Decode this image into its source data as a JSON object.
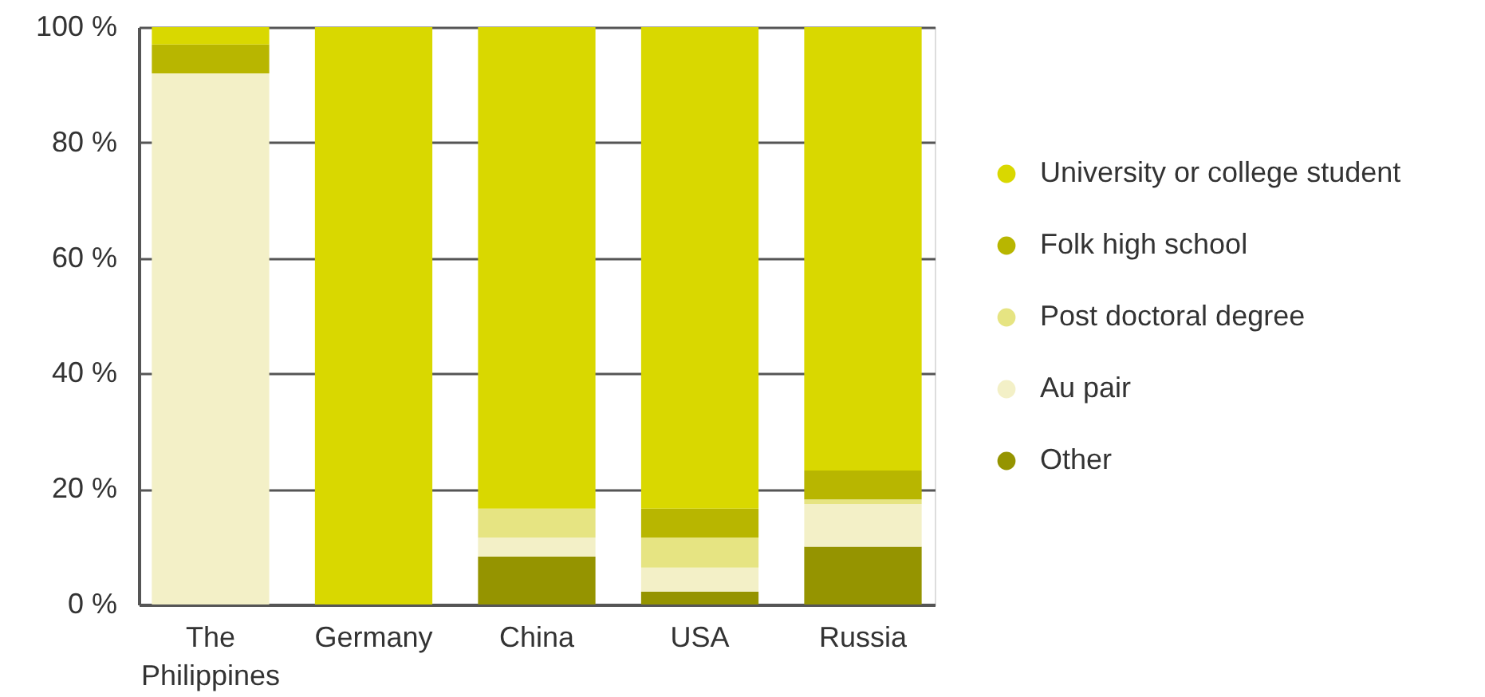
{
  "chart_data": {
    "type": "bar",
    "stacked": true,
    "categories": [
      "The Philippines",
      "Germany",
      "China",
      "USA",
      "Russia"
    ],
    "series": [
      {
        "name": "Other",
        "color": "#959400",
        "values": [
          0,
          0,
          8.3,
          2.2,
          10
        ]
      },
      {
        "name": "Au pair",
        "color": "#f3f0c7",
        "values": [
          92,
          0,
          3.3,
          4.2,
          7.4
        ]
      },
      {
        "name": "Post doctoral degree",
        "color": "#e6e482",
        "values": [
          0,
          0,
          5,
          5.2,
          0.8
        ]
      },
      {
        "name": "Folk high school",
        "color": "#b8b600",
        "values": [
          5,
          0,
          0,
          5,
          5
        ]
      },
      {
        "name": "University or college student",
        "color": "#d9d800",
        "values": [
          3,
          100,
          83.4,
          83.4,
          76.8
        ]
      }
    ],
    "ylim": [
      0,
      100
    ],
    "yticks": [
      {
        "value": 0,
        "label": "0 %"
      },
      {
        "value": 20,
        "label": "20 %"
      },
      {
        "value": 40,
        "label": "40 %"
      },
      {
        "value": 60,
        "label": "60 %"
      },
      {
        "value": 80,
        "label": "80 %"
      },
      {
        "value": 100,
        "label": "100 %"
      }
    ],
    "grid": "y",
    "legend": "right"
  }
}
